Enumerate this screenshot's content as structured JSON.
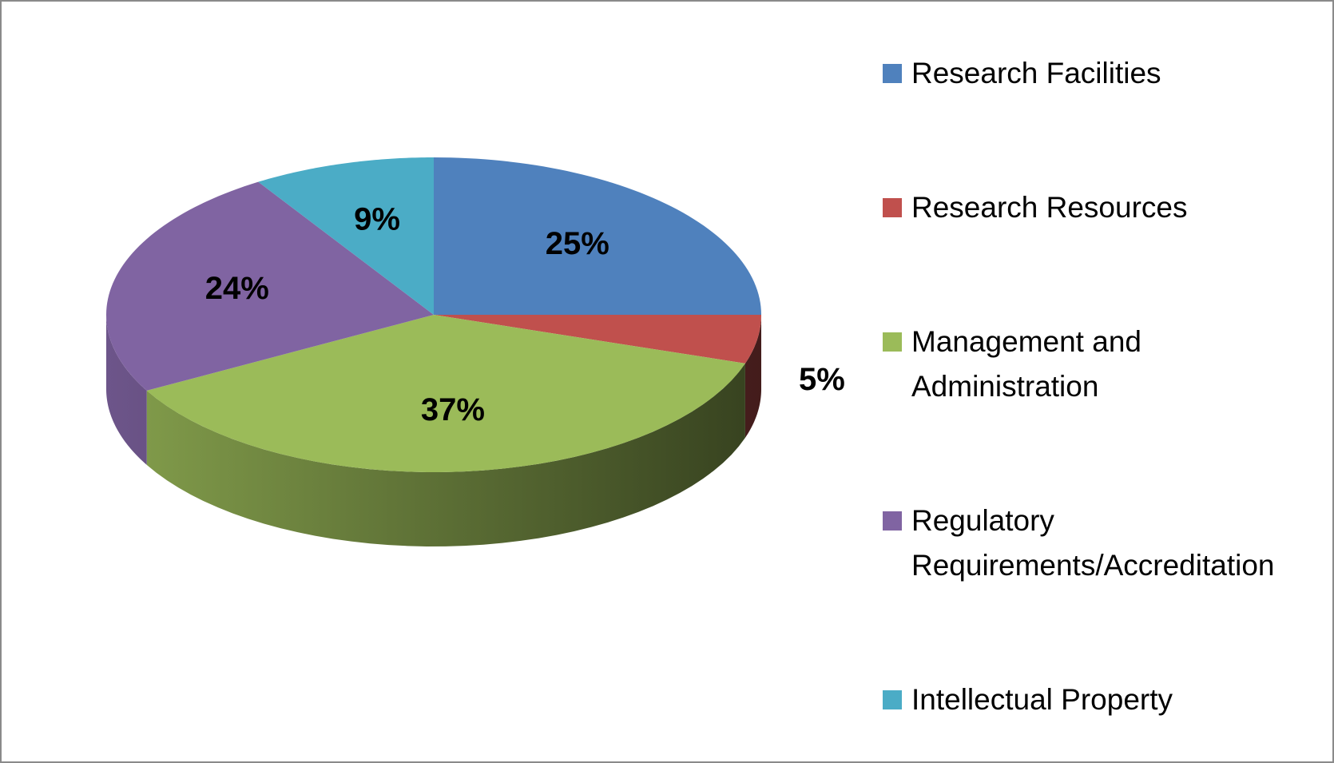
{
  "chart_data": {
    "type": "pie3d",
    "categories": [
      "Research Facilities",
      "Research Resources",
      "Management and Administration",
      "Regulatory Requirements/Accreditation",
      "Intellectual Property"
    ],
    "values": [
      25,
      5,
      37,
      24,
      9
    ],
    "value_labels": [
      "25%",
      "5%",
      "37%",
      "24%",
      "9%"
    ],
    "colors": [
      "#4f81bd",
      "#c0504d",
      "#9bbb59",
      "#8064a2",
      "#4bacc6"
    ],
    "legend": "right"
  }
}
